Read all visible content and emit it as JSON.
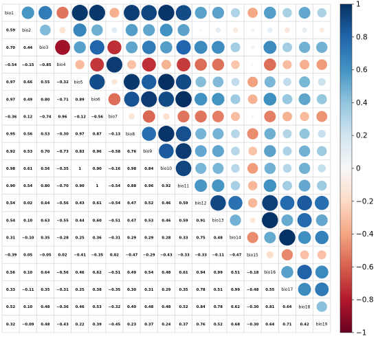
{
  "chart_data": {
    "type": "heatmap",
    "variables": [
      "bio1",
      "bio2",
      "bio3",
      "bio4",
      "bio5",
      "bio6",
      "bio7",
      "bio8",
      "bio9",
      "bio10",
      "bio11",
      "bio12",
      "bio13",
      "bio14",
      "bio15",
      "bio16",
      "bio17",
      "bio18",
      "bio19"
    ],
    "matrix": [
      [
        1,
        0.59,
        0.7,
        -0.54,
        0.97,
        0.97,
        -0.36,
        0.95,
        0.92,
        0.98,
        0.9,
        0.54,
        0.54,
        0.31,
        -0.39,
        0.56,
        0.33,
        0.52,
        0.32
      ],
      [
        0.59,
        1,
        0.44,
        -0.15,
        0.66,
        0.49,
        0.12,
        0.56,
        0.53,
        0.61,
        0.54,
        0.02,
        0.1,
        -0.1,
        0.05,
        0.1,
        -0.11,
        0.1,
        -0.09
      ],
      [
        0.7,
        0.44,
        1,
        -0.85,
        0.55,
        0.8,
        -0.74,
        0.53,
        0.7,
        0.56,
        0.8,
        0.64,
        0.63,
        0.35,
        -0.05,
        0.64,
        0.35,
        0.48,
        0.48
      ],
      [
        -0.54,
        -0.15,
        -0.85,
        1,
        -0.32,
        -0.71,
        0.96,
        -0.3,
        -0.73,
        -0.35,
        -0.7,
        -0.56,
        -0.55,
        -0.28,
        0.02,
        -0.56,
        -0.31,
        -0.36,
        -0.43
      ],
      [
        0.97,
        0.66,
        0.55,
        -0.32,
        1,
        0.89,
        -0.12,
        0.97,
        0.83,
        1.0,
        0.9,
        0.43,
        0.44,
        0.25,
        -0.41,
        0.46,
        0.25,
        0.46,
        0.22
      ],
      [
        0.97,
        0.49,
        0.8,
        -0.71,
        0.89,
        1,
        -0.56,
        0.87,
        0.96,
        0.9,
        1.0,
        0.61,
        0.6,
        0.36,
        -0.35,
        0.62,
        0.38,
        0.53,
        0.39
      ],
      [
        -0.36,
        0.12,
        -0.74,
        0.96,
        -0.12,
        -0.56,
        1,
        -0.13,
        -0.58,
        -0.16,
        -0.54,
        -0.54,
        -0.51,
        -0.31,
        0.02,
        -0.51,
        -0.35,
        -0.32,
        -0.45
      ],
      [
        0.95,
        0.56,
        0.53,
        -0.3,
        0.97,
        0.87,
        -0.13,
        1,
        0.76,
        0.98,
        0.88,
        0.47,
        0.47,
        0.29,
        -0.47,
        0.49,
        0.3,
        0.4,
        0.23
      ],
      [
        0.92,
        0.53,
        0.7,
        -0.73,
        0.83,
        0.96,
        -0.58,
        0.76,
        1,
        0.84,
        0.96,
        0.52,
        0.53,
        0.29,
        -0.29,
        0.54,
        0.31,
        0.48,
        0.37
      ],
      [
        0.98,
        0.61,
        0.56,
        -0.35,
        1.0,
        0.9,
        -0.16,
        0.98,
        0.84,
        1,
        0.92,
        0.46,
        0.46,
        0.28,
        -0.43,
        0.48,
        0.29,
        0.48,
        0.24
      ],
      [
        0.9,
        0.54,
        0.8,
        -0.7,
        0.9,
        1.0,
        -0.54,
        0.88,
        0.96,
        0.92,
        1,
        0.59,
        0.59,
        0.33,
        -0.33,
        0.61,
        0.35,
        0.52,
        0.37
      ],
      [
        0.54,
        0.02,
        0.64,
        -0.56,
        0.43,
        0.61,
        -0.54,
        0.47,
        0.52,
        0.46,
        0.59,
        1,
        0.91,
        0.75,
        -0.33,
        0.94,
        0.78,
        0.84,
        0.76
      ],
      [
        0.54,
        0.1,
        0.63,
        -0.55,
        0.44,
        0.6,
        -0.51,
        0.47,
        0.53,
        0.46,
        0.59,
        0.91,
        1,
        0.48,
        -0.11,
        0.99,
        0.51,
        0.78,
        0.52
      ],
      [
        0.31,
        -0.1,
        0.35,
        -0.28,
        0.25,
        0.36,
        -0.31,
        0.29,
        0.29,
        0.28,
        0.33,
        0.75,
        0.48,
        1,
        -0.47,
        0.51,
        0.99,
        0.62,
        0.68
      ],
      [
        -0.39,
        0.05,
        -0.05,
        0.02,
        -0.41,
        -0.35,
        0.02,
        -0.47,
        -0.29,
        -0.43,
        -0.33,
        -0.33,
        -0.11,
        -0.47,
        1,
        -0.18,
        -0.48,
        -0.3,
        -0.3
      ],
      [
        0.56,
        0.1,
        0.64,
        -0.56,
        0.46,
        0.62,
        -0.51,
        0.49,
        0.54,
        0.48,
        0.61,
        0.94,
        0.99,
        0.51,
        -0.18,
        1,
        0.55,
        0.81,
        0.64
      ],
      [
        0.33,
        -0.11,
        0.35,
        -0.31,
        0.25,
        0.38,
        -0.35,
        0.3,
        0.31,
        0.29,
        0.35,
        0.78,
        0.51,
        0.99,
        -0.48,
        0.55,
        1,
        0.64,
        0.71
      ],
      [
        0.52,
        0.1,
        0.48,
        -0.36,
        0.46,
        0.53,
        -0.32,
        0.4,
        0.48,
        0.48,
        0.52,
        0.84,
        0.78,
        0.62,
        -0.3,
        0.81,
        0.64,
        1,
        0.42
      ],
      [
        0.32,
        -0.09,
        0.48,
        -0.43,
        0.22,
        0.39,
        -0.45,
        0.23,
        0.37,
        0.24,
        0.37,
        0.76,
        0.52,
        0.68,
        -0.3,
        0.64,
        0.71,
        0.42,
        1
      ]
    ],
    "lower_triangle": "numbers",
    "upper_triangle": "circles",
    "diagonal": "variable names",
    "colorbar": {
      "range": [
        -1,
        1
      ],
      "ticks": [
        "1",
        "0.8",
        "0.6",
        "0.4",
        "0.2",
        "0",
        "−0.2",
        "−0.4",
        "−0.6",
        "−0.8",
        "−1"
      ],
      "tick_values": [
        1,
        0.8,
        0.6,
        0.4,
        0.2,
        0,
        -0.2,
        -0.4,
        -0.6,
        -0.8,
        -1
      ],
      "placement": "right"
    },
    "colors": {
      "neg_strong": "#67001f",
      "neg_mid": "#d6604d",
      "neg_light": "#fddbc7",
      "zero": "#f7f7f7",
      "pos_light": "#d1e5f0",
      "pos_mid": "#4393c3",
      "pos_strong": "#053061",
      "grid": "#d9d9d9"
    }
  }
}
